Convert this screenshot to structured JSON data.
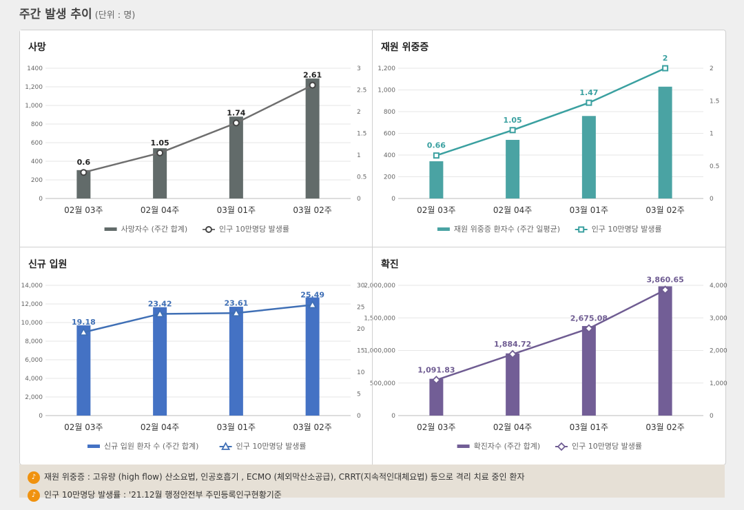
{
  "page": {
    "title": "주간 발생 추이",
    "unit": "(단위 : 명)"
  },
  "notes": [
    {
      "icon": "speaker-icon",
      "text": "재원 위중증 : 고유량 (high flow) 산소요법, 인공호흡기 , ECMO (체외막산소공급), CRRT(지속적인대체요법) 등으로 격리 치료 중인 환자"
    },
    {
      "icon": "speaker-icon",
      "text": "인구 10만명당 발생률 : '21.12월 행정안전부 주민등록인구현황기준"
    }
  ],
  "chart_data": [
    {
      "type": "bar",
      "title": "사망",
      "color": "#626b6a",
      "line_color": "#6e6e6e",
      "marker": "circle",
      "categories": [
        "02월 03주",
        "02월 04주",
        "03월 01주",
        "03월 02주"
      ],
      "left_ticks": [
        "1400",
        "1,200",
        "1,000",
        "800",
        "600",
        "400",
        "200",
        "0"
      ],
      "right_ticks": [
        "3",
        "2.5",
        "2",
        "1.5",
        "1",
        "0.5",
        "0"
      ],
      "ylim": [
        0,
        1400
      ],
      "y2lim": [
        0,
        3
      ],
      "series": [
        {
          "name": "사망자수 (주간 합계)",
          "kind": "bar",
          "values": [
            305,
            540,
            880,
            1290
          ]
        },
        {
          "name": "인구 10만명당 발생률",
          "kind": "line",
          "values": [
            0.6,
            1.05,
            1.74,
            2.61
          ],
          "labels": [
            "0.6",
            "1.05",
            "1.74",
            "2.61"
          ]
        }
      ]
    },
    {
      "type": "bar",
      "title": "재원 위중증",
      "color": "#4aa3a3",
      "line_color": "#3aa0a0",
      "marker": "square",
      "categories": [
        "02월 03주",
        "02월 04주",
        "03월 01주",
        "03월 02주"
      ],
      "left_ticks": [
        "1,200",
        "1,000",
        "800",
        "600",
        "400",
        "200",
        "0"
      ],
      "right_ticks": [
        "2",
        "1.5",
        "1",
        "0.5",
        "0"
      ],
      "ylim": [
        0,
        1200
      ],
      "y2lim": [
        0,
        2
      ],
      "series": [
        {
          "name": "재원 위중증 환자수 (주간 일평균)",
          "kind": "bar",
          "values": [
            343,
            540,
            760,
            1030
          ]
        },
        {
          "name": "인구 10만명당 발생률",
          "kind": "line",
          "values": [
            0.66,
            1.05,
            1.47,
            2
          ],
          "labels": [
            "0.66",
            "1.05",
            "1.47",
            "2"
          ]
        }
      ]
    },
    {
      "type": "bar",
      "title": "신규 입원",
      "color": "#4472c4",
      "line_color": "#3f6fb5",
      "marker": "triangle",
      "categories": [
        "02월 03주",
        "02월 04주",
        "03월 01주",
        "03월 02주"
      ],
      "left_ticks": [
        "14,000",
        "12,000",
        "10,000",
        "8,000",
        "6,000",
        "4,000",
        "2,000",
        "0"
      ],
      "right_ticks": [
        "30",
        "25",
        "20",
        "15",
        "10",
        "5",
        "0"
      ],
      "ylim": [
        0,
        14000
      ],
      "y2lim": [
        0,
        30
      ],
      "series": [
        {
          "name": "신규 입원 환자 수 (주간 합계)",
          "kind": "bar",
          "values": [
            9700,
            11650,
            11700,
            12700
          ]
        },
        {
          "name": "인구 10만명당 발생률",
          "kind": "line",
          "values": [
            19.18,
            23.42,
            23.61,
            25.49
          ],
          "labels": [
            "19.18",
            "23.42",
            "23.61",
            "25.49"
          ]
        }
      ]
    },
    {
      "type": "bar",
      "title": "확진",
      "color": "#725e96",
      "line_color": "#6f5c92",
      "marker": "diamond",
      "categories": [
        "02월 03주",
        "02월 04주",
        "03월 01주",
        "03월 02주"
      ],
      "left_ticks": [
        "2,000,000",
        "1,500,000",
        "1,000,000",
        "500,000",
        "0"
      ],
      "right_ticks": [
        "4,000",
        "3,000",
        "2,000",
        "1,000",
        "0"
      ],
      "ylim": [
        0,
        2000000
      ],
      "y2lim": [
        0,
        4000
      ],
      "series": [
        {
          "name": "확진자수 (주간 합계)",
          "kind": "bar",
          "values": [
            565000,
            955000,
            1375000,
            1985000
          ]
        },
        {
          "name": "인구 10만명당 발생률",
          "kind": "line",
          "values": [
            1091.83,
            1884.72,
            2675.08,
            3860.65
          ],
          "labels": [
            "1,091.83",
            "1,884.72",
            "2,675.08",
            "3,860.65"
          ]
        }
      ]
    }
  ]
}
